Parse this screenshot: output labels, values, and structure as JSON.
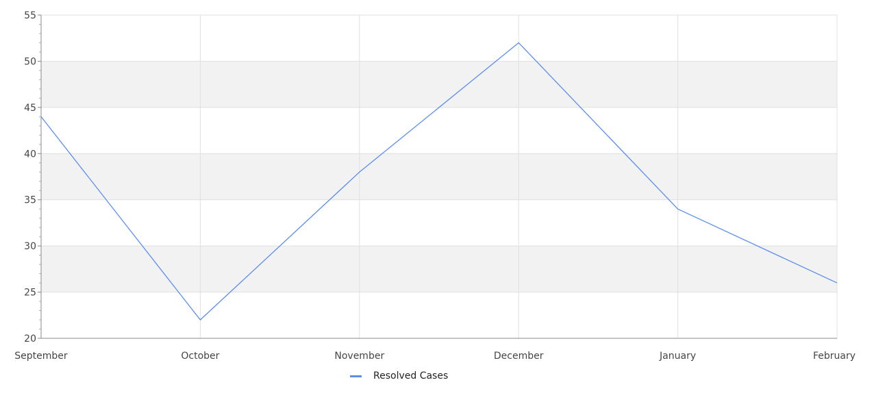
{
  "chart_data": {
    "type": "line",
    "title": "",
    "xlabel": "",
    "ylabel": "",
    "categories": [
      "September",
      "October",
      "November",
      "December",
      "January",
      "February"
    ],
    "series": [
      {
        "name": "Resolved Cases",
        "values": [
          44,
          22,
          38,
          52,
          34,
          26
        ],
        "color": "#5b8def"
      }
    ],
    "ylim": [
      20,
      55
    ],
    "yticks": [
      20,
      25,
      30,
      35,
      40,
      45,
      50,
      55
    ],
    "yticks_labels": [
      "20",
      "25",
      "30",
      "35",
      "40",
      "45",
      "50",
      "55"
    ],
    "grid": true,
    "banded_background": true,
    "band_color": "#f2f2f2",
    "grid_color": "#e0e0e0",
    "legend_position": "bottom-center"
  }
}
